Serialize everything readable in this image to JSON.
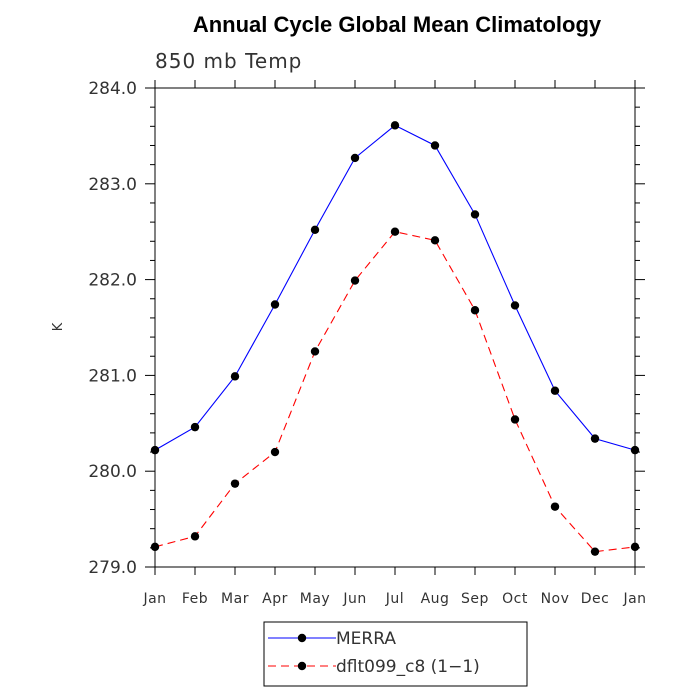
{
  "chart_data": {
    "type": "line",
    "title": "Annual Cycle Global Mean Climatology",
    "subtitle": "850 mb Temp",
    "xlabel": "",
    "ylabel": "K",
    "categories": [
      "Jan",
      "Feb",
      "Mar",
      "Apr",
      "May",
      "Jun",
      "Jul",
      "Aug",
      "Sep",
      "Oct",
      "Nov",
      "Dec",
      "Jan"
    ],
    "ylim": [
      279.0,
      284.0
    ],
    "yticks": [
      279.0,
      280.0,
      281.0,
      282.0,
      283.0,
      284.0
    ],
    "ytick_labels": [
      "279.0",
      "280.0",
      "281.0",
      "282.0",
      "283.0",
      "284.0"
    ],
    "grid": false,
    "legend_position": "bottom",
    "series": [
      {
        "name": "MERRA",
        "color": "#0000ff",
        "line_style": "solid",
        "marker": "circle",
        "values": [
          280.22,
          280.46,
          280.99,
          281.74,
          282.52,
          283.27,
          283.61,
          283.4,
          282.68,
          281.73,
          280.84,
          280.34,
          280.22
        ]
      },
      {
        "name": "dflt099_c8 (1−1)",
        "color": "#ff0000",
        "line_style": "dashed",
        "marker": "circle",
        "values": [
          279.21,
          279.32,
          279.87,
          280.2,
          281.25,
          281.99,
          282.5,
          282.41,
          281.68,
          280.54,
          279.63,
          279.16,
          279.21
        ]
      }
    ]
  }
}
